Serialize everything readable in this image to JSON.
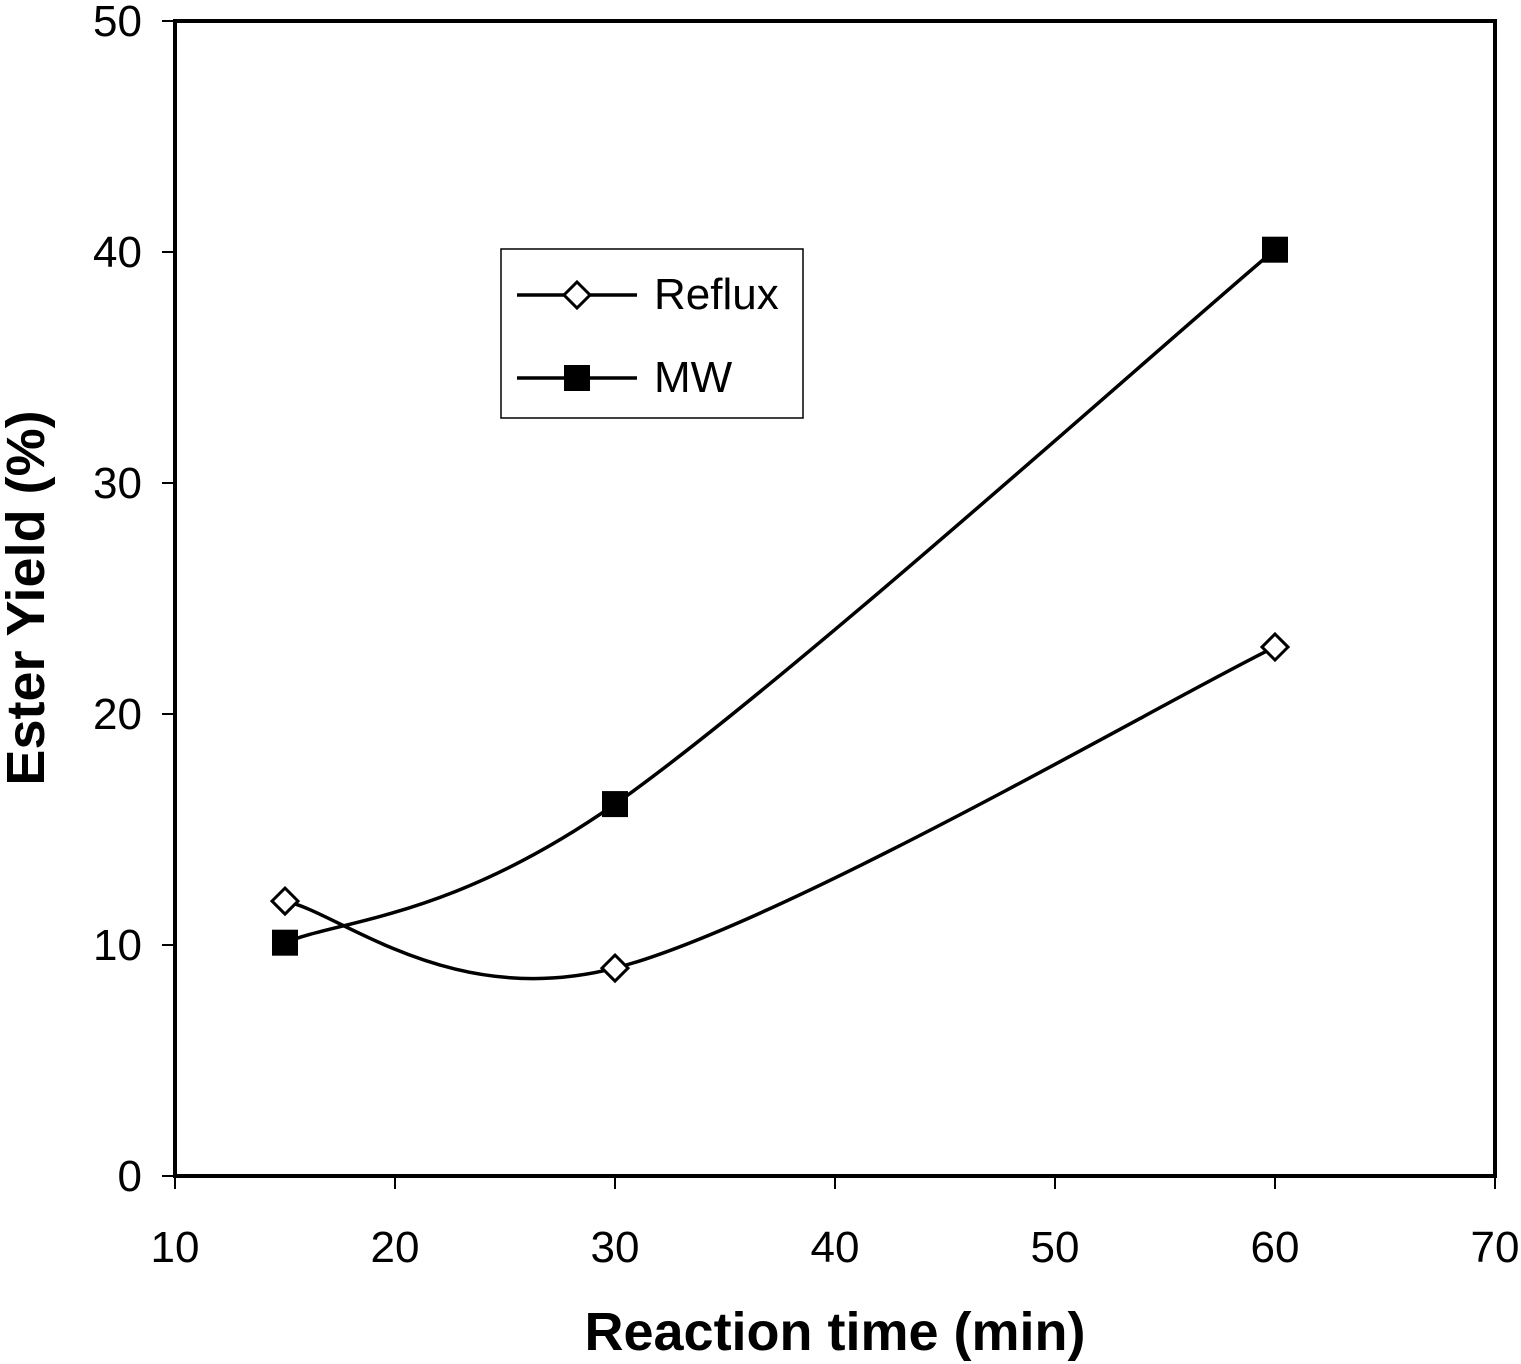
{
  "chart_data": {
    "type": "line",
    "title": "",
    "xlabel": "Reaction time (min)",
    "ylabel": "Ester Yield (%)",
    "xlim": [
      10,
      70
    ],
    "ylim": [
      0,
      50
    ],
    "xticks": [
      10,
      20,
      30,
      40,
      50,
      60,
      70
    ],
    "yticks": [
      0,
      10,
      20,
      30,
      40,
      50
    ],
    "grid": false,
    "legend_position": "upper-center",
    "series": [
      {
        "name": "Reflux",
        "marker": "open-diamond",
        "smooth": true,
        "x": [
          15,
          30,
          60
        ],
        "y": [
          11.9,
          9.0,
          22.9
        ]
      },
      {
        "name": "MW",
        "marker": "filled-square",
        "smooth": true,
        "x": [
          15,
          30,
          60
        ],
        "y": [
          10.1,
          16.1,
          40.1
        ]
      }
    ],
    "colors": {
      "line": "#000000",
      "background": "#ffffff",
      "marker_open_fill": "#ffffff"
    }
  }
}
